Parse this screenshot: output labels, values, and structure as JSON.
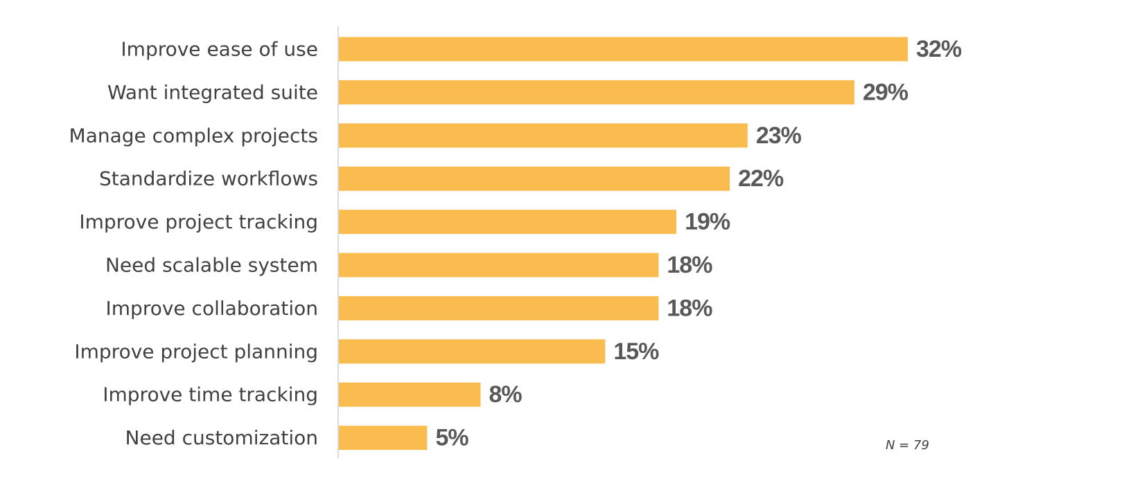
{
  "chart_data": {
    "type": "bar",
    "orientation": "horizontal",
    "title": "",
    "xlabel": "",
    "ylabel": "",
    "categories": [
      "Improve ease of use",
      "Want integrated suite",
      "Manage complex projects",
      "Standardize workflows",
      "Improve project tracking",
      "Need scalable system",
      "Improve collaboration",
      "Improve project planning",
      "Improve time tracking",
      "Need customization"
    ],
    "values": [
      32,
      29,
      23,
      22,
      19,
      18,
      18,
      15,
      8,
      5
    ],
    "value_labels": [
      "32%",
      "29%",
      "23%",
      "22%",
      "19%",
      "18%",
      "18%",
      "15%",
      "8%",
      "5%"
    ],
    "xlim": [
      0,
      32
    ],
    "grid": false,
    "legend": "none",
    "bar_color": "#FBBC4F",
    "axis_color": "#D9D9D9",
    "note": "N = 79"
  }
}
